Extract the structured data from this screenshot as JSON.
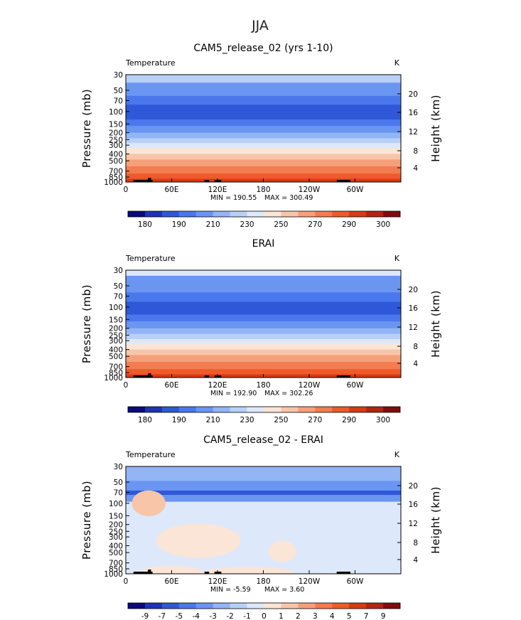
{
  "figure": {
    "title": "JJA"
  },
  "chart_data": [
    {
      "type": "heatmap",
      "title": "CAM5_release_02 (yrs 1-10)",
      "variable_label": "Temperature",
      "units_label": "K",
      "ylabel": "Pressure (mb)",
      "y2label": "Height (km)",
      "y_ticks": [
        "30",
        "50",
        "70",
        "100",
        "150",
        "200",
        "250",
        "300",
        "400",
        "500",
        "700",
        "850",
        "1000"
      ],
      "y2_ticks": [
        "20",
        "16",
        "12",
        "8",
        "4"
      ],
      "x_ticks": [
        "0",
        "60E",
        "120E",
        "180",
        "120W",
        "60W"
      ],
      "stats": {
        "min_label": "MIN = 190.55",
        "max_label": "MAX = 300.49"
      },
      "colorbar_labels": [
        "180",
        "190",
        "210",
        "230",
        "250",
        "270",
        "290",
        "300"
      ],
      "colorbar_colors": [
        "#0a0a78",
        "#1f33b4",
        "#2e58d8",
        "#4a78ec",
        "#6a96f2",
        "#93b4f5",
        "#b8d0f8",
        "#dde8fb",
        "#fbe5d6",
        "#f8c5a8",
        "#f5a07a",
        "#f37c50",
        "#ef5a2a",
        "#d83a16",
        "#b52412",
        "#7e0e0e"
      ],
      "layers": [
        {
          "p_top": 30,
          "p_bot": 39,
          "color": "#b8d0f8"
        },
        {
          "p_top": 39,
          "p_bot": 60,
          "color": "#6a96f2"
        },
        {
          "p_top": 60,
          "p_bot": 80,
          "color": "#4a78ec"
        },
        {
          "p_top": 80,
          "p_bot": 130,
          "color": "#2e58d8"
        },
        {
          "p_top": 130,
          "p_bot": 160,
          "color": "#4a78ec"
        },
        {
          "p_top": 160,
          "p_bot": 200,
          "color": "#6a96f2"
        },
        {
          "p_top": 200,
          "p_bot": 240,
          "color": "#93b4f5"
        },
        {
          "p_top": 240,
          "p_bot": 280,
          "color": "#b8d0f8"
        },
        {
          "p_top": 280,
          "p_bot": 330,
          "color": "#dde8fb"
        },
        {
          "p_top": 330,
          "p_bot": 400,
          "color": "#fbe5d6"
        },
        {
          "p_top": 400,
          "p_bot": 480,
          "color": "#f8c5a8"
        },
        {
          "p_top": 480,
          "p_bot": 600,
          "color": "#f5a07a"
        },
        {
          "p_top": 600,
          "p_bot": 760,
          "color": "#f37c50"
        },
        {
          "p_top": 760,
          "p_bot": 900,
          "color": "#ef5a2a"
        },
        {
          "p_top": 900,
          "p_bot": 1000,
          "color": "#d83a16"
        }
      ]
    },
    {
      "type": "heatmap",
      "title": "ERAI",
      "variable_label": "Temperature",
      "units_label": "K",
      "ylabel": "Pressure (mb)",
      "y2label": "Height (km)",
      "y_ticks": [
        "30",
        "50",
        "70",
        "100",
        "150",
        "200",
        "250",
        "300",
        "400",
        "500",
        "700",
        "850",
        "1000"
      ],
      "y2_ticks": [
        "20",
        "16",
        "12",
        "8",
        "4"
      ],
      "x_ticks": [
        "0",
        "60E",
        "120E",
        "180",
        "120W",
        "60W"
      ],
      "stats": {
        "min_label": "MIN = 192.90",
        "max_label": "MAX = 302.26"
      },
      "colorbar_labels": [
        "180",
        "190",
        "210",
        "230",
        "250",
        "270",
        "290",
        "300"
      ],
      "colorbar_colors": [
        "#0a0a78",
        "#1f33b4",
        "#2e58d8",
        "#4a78ec",
        "#6a96f2",
        "#93b4f5",
        "#b8d0f8",
        "#dde8fb",
        "#fbe5d6",
        "#f8c5a8",
        "#f5a07a",
        "#f37c50",
        "#ef5a2a",
        "#d83a16",
        "#b52412",
        "#7e0e0e"
      ],
      "layers": [
        {
          "p_top": 30,
          "p_bot": 36,
          "color": "#dde8fb"
        },
        {
          "p_top": 36,
          "p_bot": 62,
          "color": "#6a96f2"
        },
        {
          "p_top": 62,
          "p_bot": 84,
          "color": "#4a78ec"
        },
        {
          "p_top": 84,
          "p_bot": 128,
          "color": "#2e58d8"
        },
        {
          "p_top": 128,
          "p_bot": 160,
          "color": "#4a78ec"
        },
        {
          "p_top": 160,
          "p_bot": 200,
          "color": "#6a96f2"
        },
        {
          "p_top": 200,
          "p_bot": 240,
          "color": "#93b4f5"
        },
        {
          "p_top": 240,
          "p_bot": 285,
          "color": "#b8d0f8"
        },
        {
          "p_top": 285,
          "p_bot": 330,
          "color": "#dde8fb"
        },
        {
          "p_top": 330,
          "p_bot": 400,
          "color": "#fbe5d6"
        },
        {
          "p_top": 400,
          "p_bot": 480,
          "color": "#f8c5a8"
        },
        {
          "p_top": 480,
          "p_bot": 600,
          "color": "#f5a07a"
        },
        {
          "p_top": 600,
          "p_bot": 760,
          "color": "#f37c50"
        },
        {
          "p_top": 760,
          "p_bot": 900,
          "color": "#ef5a2a"
        },
        {
          "p_top": 900,
          "p_bot": 1000,
          "color": "#d83a16"
        }
      ]
    },
    {
      "type": "heatmap",
      "title": "CAM5_release_02 - ERAI",
      "variable_label": "Temperature",
      "units_label": "K",
      "ylabel": "Pressure (mb)",
      "y2label": "Height (km)",
      "y_ticks": [
        "30",
        "50",
        "70",
        "100",
        "150",
        "200",
        "250",
        "300",
        "400",
        "500",
        "700",
        "850",
        "1000"
      ],
      "y2_ticks": [
        "20",
        "16",
        "12",
        "8",
        "4"
      ],
      "x_ticks": [
        "0",
        "60E",
        "120E",
        "180",
        "120W",
        "60W"
      ],
      "stats": {
        "min_label": "MIN = -5.59",
        "max_label": "MAX = 3.60"
      },
      "colorbar_labels": [
        "-9",
        "-7",
        "-5",
        "-4",
        "-3",
        "-2",
        "-1",
        "0",
        "1",
        "2",
        "3",
        "4",
        "5",
        "7",
        "9"
      ],
      "colorbar_colors": [
        "#0a0a78",
        "#1f33b4",
        "#2e58d8",
        "#4a78ec",
        "#6a96f2",
        "#93b4f5",
        "#b8d0f8",
        "#dde8fb",
        "#fbe5d6",
        "#f8c5a8",
        "#f5a07a",
        "#f37c50",
        "#ef5a2a",
        "#d83a16",
        "#b52412",
        "#7e0e0e"
      ],
      "layers": [
        {
          "p_top": 30,
          "p_bot": 48,
          "color": "#93b4f5"
        },
        {
          "p_top": 48,
          "p_bot": 66,
          "color": "#6a96f2"
        },
        {
          "p_top": 66,
          "p_bot": 76,
          "color": "#2e58d8"
        },
        {
          "p_top": 76,
          "p_bot": 95,
          "color": "#6a96f2"
        },
        {
          "p_top": 95,
          "p_bot": 1000,
          "color": "#dde8fb"
        }
      ],
      "blobs": [
        {
          "lon": 30,
          "p": 100,
          "dlon": 22,
          "dp_frac": 0.06,
          "color": "#f8c5a8"
        },
        {
          "lon": 95,
          "p": 340,
          "dlon": 55,
          "dp_frac": 0.08,
          "color": "#fbe5d6"
        },
        {
          "lon": 205,
          "p": 480,
          "dlon": 18,
          "dp_frac": 0.05,
          "color": "#fbe5d6"
        },
        {
          "lon": 60,
          "p": 950,
          "dlon": 40,
          "dp_frac": 0.03,
          "color": "#fbe5d6"
        },
        {
          "lon": 160,
          "p": 960,
          "dlon": 60,
          "dp_frac": 0.025,
          "color": "#fbe5d6"
        }
      ]
    }
  ]
}
